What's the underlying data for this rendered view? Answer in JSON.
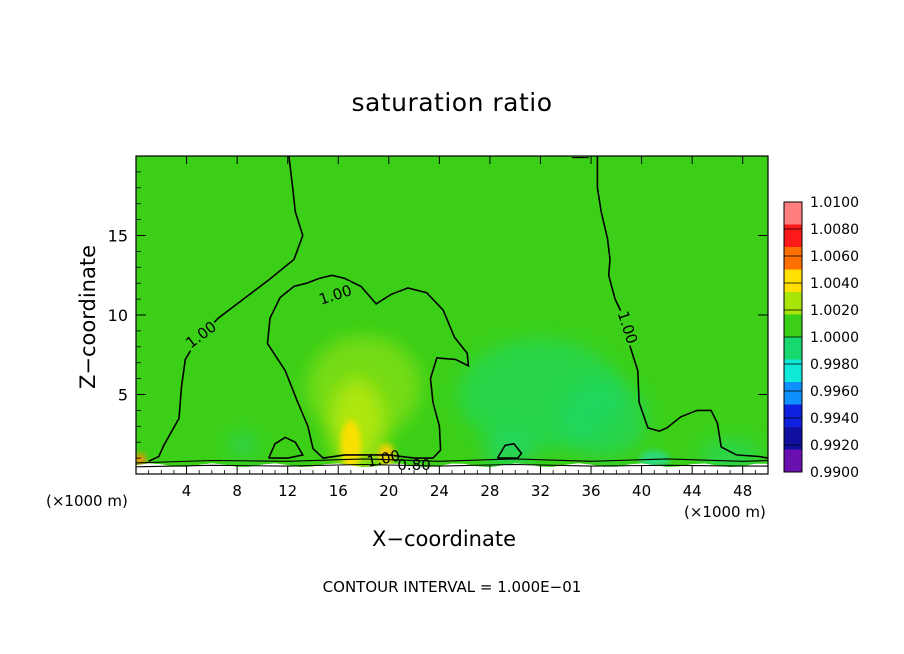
{
  "chart_data": {
    "type": "heatmap",
    "title": "saturation ratio",
    "xlabel": "X−coordinate",
    "ylabel": "Z−coordinate",
    "x_unit_note": "(×1000 m)",
    "xlim": [
      0,
      50
    ],
    "ylim": [
      0,
      20
    ],
    "x_ticks": [
      4,
      8,
      12,
      16,
      20,
      24,
      28,
      32,
      36,
      40,
      44,
      48
    ],
    "y_ticks": [
      5,
      10,
      15
    ],
    "contour_interval_text": "CONTOUR INTERVAL = 1.000E−01",
    "contour_labels": [
      "1.00",
      "1.00",
      "1.00",
      "1.00",
      "0.80"
    ],
    "colorbar": {
      "levels": [
        "1.0100",
        "1.0080",
        "1.0060",
        "1.0040",
        "1.0020",
        "1.0000",
        "0.9980",
        "0.9960",
        "0.9940",
        "0.9920",
        "0.9900"
      ],
      "colors": [
        "#ff7f7f",
        "#ff1a1a",
        "#ff7000",
        "#ffe000",
        "#a8e60a",
        "#3ccf18",
        "#18d870",
        "#10e8d8",
        "#1090ff",
        "#1020e0",
        "#1010a0",
        "#6a0fb0"
      ]
    },
    "background_value": "1.0000",
    "background_color": "#3ccf18"
  }
}
